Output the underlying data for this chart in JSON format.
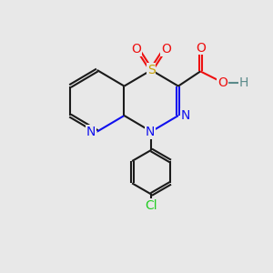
{
  "bg_color": "#e8e8e8",
  "bond_color": "#1a1a1a",
  "N_color": "#1010ee",
  "O_color": "#ee1010",
  "S_color": "#c8a000",
  "Cl_color": "#22cc22",
  "H_color": "#5a8a8a",
  "lw": 1.5,
  "fs": 10,
  "xlim": [
    0,
    10
  ],
  "ylim": [
    0,
    11
  ]
}
